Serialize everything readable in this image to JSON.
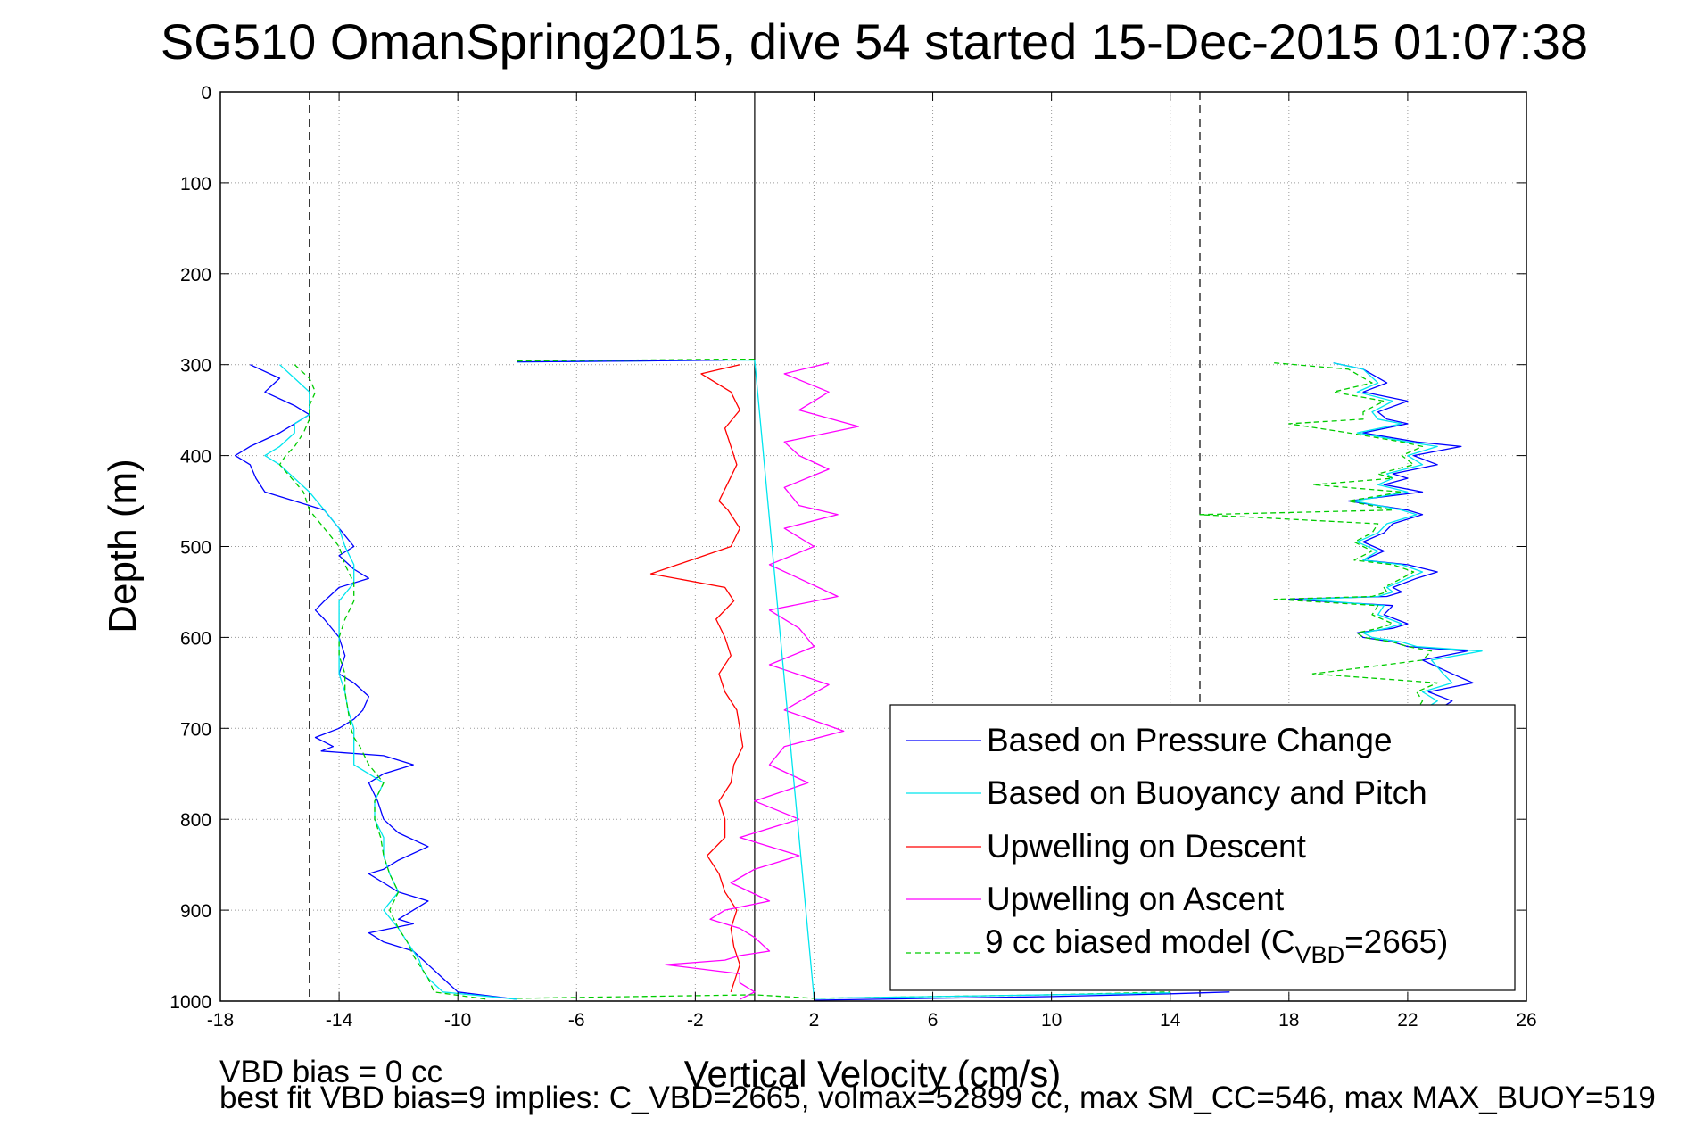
{
  "chart_data": {
    "type": "line",
    "title": "SG510 OmanSpring2015, dive 54 started 15-Dec-2015 01:07:38",
    "xlabel": "Vertical Velocity (cm/s)",
    "ylabel": "Depth (m)",
    "xlim": [
      -18,
      26
    ],
    "ylim": [
      0,
      1000
    ],
    "y_reversed": true,
    "grid": true,
    "xticks": [
      -18,
      -14,
      -10,
      -6,
      -2,
      2,
      6,
      10,
      14,
      18,
      22,
      26
    ],
    "yticks": [
      0,
      100,
      200,
      300,
      400,
      500,
      600,
      700,
      800,
      900,
      1000
    ],
    "reference_lines": {
      "solid_x": [
        0
      ],
      "dashed_x": [
        -15,
        15
      ]
    },
    "legend_position": "lower-right",
    "series": [
      {
        "name": "Based on Pressure Change",
        "color": "#0000ff",
        "style": "solid",
        "x": [
          -17,
          -16,
          -16.5,
          -15.5,
          -15,
          -15.5,
          -16,
          -17,
          -17.5,
          -17,
          -16.8,
          -16.5,
          -15.5,
          -14.5,
          -14,
          -13.5,
          -14,
          -13.5,
          -13,
          -14,
          -14.5,
          -14.8,
          -14.5,
          -14,
          -13.8,
          -14,
          -13.5,
          -13,
          -13.2,
          -13.5,
          -14,
          -14.8,
          -14.5,
          -14.2,
          -14.6,
          -12.5,
          -11.5,
          -12.5,
          -13,
          -12.7,
          -12.5,
          -12,
          -11,
          -12,
          -12.5,
          -13,
          -12.5,
          -12,
          -11,
          -11.5,
          -12,
          -11.5,
          -13,
          -12.5,
          -11.5,
          -11,
          -10.5,
          -10,
          -8
        ],
        "y": [
          300,
          315,
          330,
          345,
          355,
          365,
          375,
          390,
          400,
          410,
          425,
          440,
          450,
          460,
          480,
          500,
          510,
          525,
          535,
          545,
          560,
          570,
          580,
          600,
          620,
          640,
          650,
          665,
          680,
          690,
          700,
          710,
          715,
          720,
          725,
          730,
          740,
          750,
          760,
          780,
          800,
          815,
          830,
          845,
          855,
          860,
          870,
          880,
          890,
          900,
          910,
          915,
          925,
          935,
          945,
          960,
          975,
          990,
          998
        ]
      },
      {
        "name": "Based on Buoyancy and Pitch",
        "color": "#00e5ee",
        "style": "solid",
        "x": [
          -16,
          -15.5,
          -15,
          -15,
          -15,
          -15.5,
          -15.5,
          -16,
          -16.5,
          -16,
          -15.5,
          -15,
          -14.5,
          -14,
          -13.8,
          -13.5,
          -13.5,
          -14,
          -14,
          -14,
          -14,
          -14,
          -13.8,
          -13.7,
          -13.6,
          -13.5,
          -13.5,
          -13.5,
          -13.5,
          -13.5,
          -13,
          -12.5,
          -12.8,
          -12.8,
          -12.5,
          -12.5,
          -12.3,
          -12,
          -12.5,
          -12,
          -11.7,
          -11.5,
          -11.3,
          -11.2,
          -11,
          -10.5,
          -8
        ],
        "y": [
          300,
          315,
          330,
          345,
          355,
          365,
          375,
          390,
          400,
          410,
          425,
          440,
          460,
          480,
          500,
          520,
          540,
          560,
          580,
          600,
          620,
          640,
          660,
          680,
          690,
          700,
          710,
          720,
          730,
          740,
          750,
          760,
          780,
          800,
          820,
          840,
          860,
          880,
          900,
          920,
          935,
          945,
          955,
          965,
          975,
          990,
          998
        ]
      },
      {
        "name": "Upwelling on Descent",
        "color": "#ff0000",
        "style": "solid",
        "x": [
          -0.5,
          -1.8,
          -0.8,
          -0.5,
          -1,
          -0.8,
          -0.6,
          -0.9,
          -1.2,
          -0.9,
          -0.5,
          -0.8,
          -3.5,
          -1,
          -0.7,
          -1.3,
          -1,
          -0.8,
          -1.2,
          -1,
          -0.6,
          -0.5,
          -0.4,
          -0.7,
          -0.8,
          -1.2,
          -1,
          -1,
          -1.6,
          -1.2,
          -1,
          -0.6,
          -0.8,
          -0.7,
          -0.5,
          -0.8
        ],
        "y": [
          300,
          310,
          330,
          350,
          370,
          390,
          410,
          430,
          450,
          460,
          480,
          500,
          530,
          545,
          560,
          580,
          600,
          620,
          640,
          660,
          680,
          700,
          720,
          740,
          760,
          780,
          800,
          820,
          840,
          860,
          880,
          900,
          920,
          940,
          960,
          990
        ]
      },
      {
        "name": "Upwelling on Ascent",
        "color": "#ff00ff",
        "style": "solid",
        "x": [
          2.5,
          1,
          2.5,
          1.5,
          3.5,
          1,
          1.5,
          2.5,
          1,
          1.5,
          2.8,
          1,
          2,
          0.5,
          2.8,
          0.5,
          1.5,
          2,
          0.5,
          2.5,
          1,
          3,
          1,
          0.5,
          1.8,
          0,
          1.5,
          -0.5,
          1.5,
          0,
          -0.8,
          0.5,
          -1,
          -1.5,
          -0.5,
          0,
          0.5,
          -0.5,
          -1,
          -3,
          -0.5,
          -0.5,
          0,
          -0.5
        ],
        "y": [
          298,
          310,
          330,
          350,
          368,
          385,
          400,
          415,
          435,
          455,
          465,
          480,
          500,
          520,
          555,
          570,
          590,
          610,
          630,
          652,
          680,
          703,
          720,
          740,
          760,
          780,
          800,
          820,
          840,
          855,
          870,
          890,
          900,
          910,
          920,
          930,
          945,
          950,
          955,
          960,
          970,
          980,
          990,
          998
        ]
      },
      {
        "name": "9 cc biased model (C_VBD=2665)",
        "color": "#00cc00",
        "style": "dashed",
        "x": [
          -15.5,
          -15,
          -14.8,
          -15,
          -15,
          -15.2,
          -15.5,
          -15.8,
          -16,
          -15.6,
          -15.2,
          -15,
          -14.5,
          -14,
          -13.8,
          -13.5,
          -13.5,
          -13.8,
          -14,
          -14,
          -13.8,
          -13.8,
          -13.7,
          -13.6,
          -13.5,
          -13.3,
          -13,
          -12.5,
          -12.8,
          -12.8,
          -12.6,
          -12.5,
          -12.3,
          -12,
          -12.3,
          -12,
          -11.7,
          -11.5,
          -11.3,
          -11,
          -10.8,
          -9
        ],
        "y": [
          300,
          315,
          330,
          345,
          360,
          375,
          390,
          400,
          410,
          425,
          440,
          460,
          480,
          500,
          520,
          540,
          560,
          580,
          600,
          620,
          640,
          660,
          680,
          700,
          710,
          720,
          740,
          760,
          780,
          800,
          820,
          840,
          860,
          880,
          900,
          920,
          935,
          950,
          960,
          975,
          990,
          998
        ]
      },
      {
        "name": "",
        "color": "#0000ff",
        "style": "solid",
        "x": [
          19.5,
          20.5,
          21.3,
          20.5,
          22,
          21,
          21.3,
          22,
          20.5,
          22.3,
          23.8,
          22.2,
          23,
          21.5,
          22,
          21.2,
          22.5,
          20,
          22,
          22.5,
          21.5,
          21.2,
          20.5,
          21.2,
          20.5,
          22,
          23,
          22.3,
          21.5,
          21.8,
          21.3,
          18,
          21.5,
          21.2,
          22,
          21.5,
          20.3,
          20.5,
          21.5,
          22,
          24,
          22.5,
          23.5,
          24.2,
          22.7,
          23.5,
          23
        ],
        "y": [
          298,
          305,
          320,
          330,
          340,
          352,
          360,
          365,
          375,
          385,
          390,
          400,
          410,
          420,
          425,
          432,
          440,
          450,
          460,
          465,
          475,
          485,
          495,
          505,
          515,
          520,
          528,
          535,
          545,
          550,
          555,
          558,
          565,
          575,
          585,
          590,
          595,
          600,
          605,
          610,
          615,
          625,
          640,
          650,
          660,
          670,
          680
        ]
      },
      {
        "name": "",
        "color": "#00e5ee",
        "style": "solid",
        "x": [
          19.5,
          20.5,
          21,
          20.3,
          21.5,
          20.8,
          21,
          21.8,
          20.3,
          22,
          23,
          22,
          22.5,
          21.3,
          21.5,
          21,
          22,
          20.2,
          21.8,
          22.3,
          21.3,
          21,
          20.3,
          21,
          20.5,
          21.8,
          22.5,
          22,
          21.3,
          21.5,
          21,
          18.5,
          21.2,
          21,
          21.8,
          21.3,
          20.5,
          20.8,
          21.8,
          22.3,
          24.5,
          22.8,
          23.2,
          23.5,
          22.5,
          23,
          22.5
        ],
        "y": [
          298,
          305,
          320,
          330,
          340,
          352,
          360,
          365,
          375,
          385,
          390,
          400,
          410,
          420,
          425,
          432,
          440,
          450,
          460,
          465,
          475,
          485,
          495,
          505,
          515,
          520,
          528,
          535,
          545,
          550,
          555,
          558,
          565,
          575,
          585,
          590,
          595,
          600,
          605,
          610,
          615,
          625,
          640,
          650,
          660,
          670,
          680
        ]
      },
      {
        "name": "",
        "color": "#00cc00",
        "style": "dashed",
        "x": [
          17.5,
          20,
          20.8,
          19.5,
          21.2,
          20.5,
          20.5,
          18,
          20,
          21.8,
          22.5,
          21.8,
          22.2,
          21,
          21.5,
          18.8,
          21.8,
          20,
          21.5,
          15,
          21,
          20.8,
          20.2,
          20.8,
          20.2,
          21.5,
          22.2,
          21.8,
          21.2,
          21.3,
          20.8,
          17.5,
          21,
          20.8,
          21.5,
          21,
          20.3,
          20.5,
          21.5,
          22,
          22.8,
          22.5,
          18.8,
          23,
          22.3,
          22.5,
          22.3
        ],
        "y": [
          298,
          305,
          320,
          330,
          340,
          352,
          360,
          365,
          375,
          385,
          390,
          400,
          410,
          420,
          425,
          432,
          440,
          450,
          460,
          465,
          475,
          485,
          495,
          505,
          515,
          520,
          528,
          535,
          545,
          550,
          555,
          558,
          565,
          575,
          585,
          590,
          595,
          600,
          605,
          610,
          615,
          625,
          640,
          650,
          660,
          670,
          680
        ]
      },
      {
        "name": "",
        "color": "#0000ff",
        "style": "solid",
        "x": [
          2,
          6,
          10,
          14,
          16
        ],
        "y": [
          999,
          997,
          995,
          992,
          990
        ]
      },
      {
        "name": "",
        "color": "#00cc00",
        "style": "dashed",
        "x": [
          -8,
          -6,
          -4,
          -2,
          0,
          2,
          6,
          10,
          14
        ],
        "y": [
          997,
          996,
          995,
          994,
          993,
          997,
          995,
          993,
          990
        ]
      },
      {
        "name": "",
        "color": "#00e5ee",
        "style": "solid",
        "x": [
          -8,
          -4,
          -1,
          0,
          2,
          8,
          14
        ],
        "y": [
          297,
          296,
          295,
          295,
          997,
          994,
          991
        ]
      },
      {
        "name": "",
        "color": "#0000ff",
        "style": "solid",
        "x": [
          -8,
          -4,
          -1
        ],
        "y": [
          297,
          296,
          295
        ]
      },
      {
        "name": "",
        "color": "#00cc00",
        "style": "dashed",
        "x": [
          -8,
          -4,
          -1,
          0
        ],
        "y": [
          296,
          295,
          294,
          294
        ]
      }
    ]
  },
  "legend": {
    "items": [
      "Based on Pressure Change",
      "Based on Buoyancy and Pitch",
      "Upwelling on Descent",
      "Upwelling on Ascent"
    ],
    "model_prefix": "9 cc biased model (C",
    "model_sub": "VBD",
    "model_suffix": "=2665)"
  },
  "footer": {
    "line1": "VBD bias = 0 cc",
    "line2": "best fit VBD bias=9 implies: C_VBD=2665, volmax=52899 cc, max SM_CC=546, max MAX_BUOY=519"
  }
}
